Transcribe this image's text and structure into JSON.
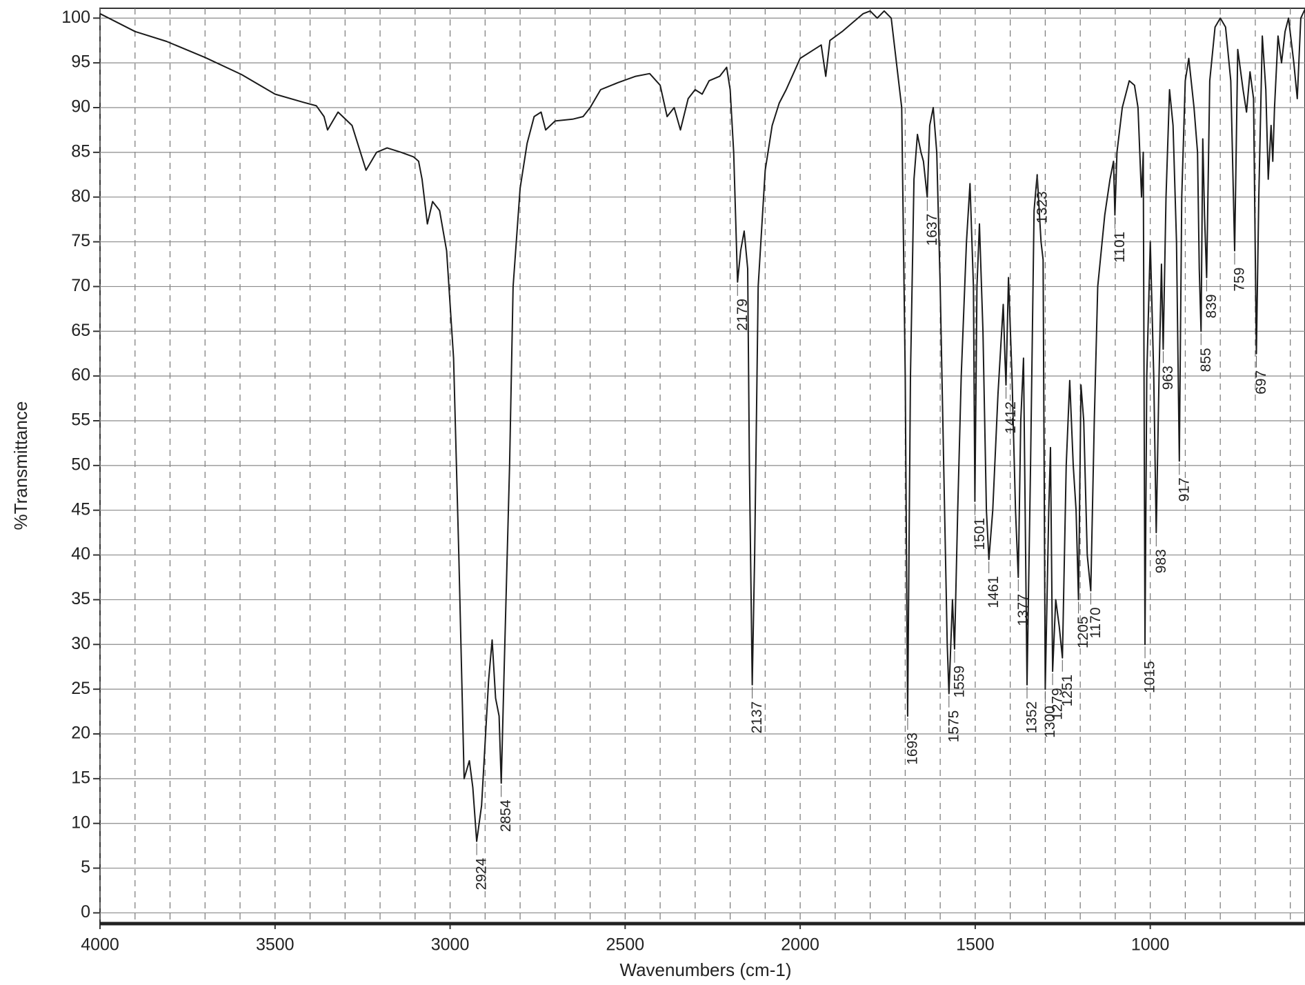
{
  "chart_data": {
    "type": "line",
    "xlabel": "Wavenumbers (cm-1)",
    "ylabel": "%Transmittance",
    "color": "#1a1a1a",
    "x": [
      4000,
      3900,
      3810,
      3700,
      3596,
      3500,
      3420,
      3382,
      3360,
      3350,
      3335,
      3320,
      3280,
      3240,
      3210,
      3180,
      3140,
      3105,
      3090,
      3080,
      3065,
      3050,
      3030,
      3010,
      2990,
      2975,
      2960,
      2945,
      2935,
      2924,
      2910,
      2890,
      2880,
      2870,
      2860,
      2854,
      2845,
      2830,
      2820,
      2800,
      2780,
      2760,
      2740,
      2727,
      2700,
      2650,
      2620,
      2600,
      2570,
      2520,
      2470,
      2430,
      2400,
      2380,
      2360,
      2342,
      2320,
      2300,
      2280,
      2260,
      2230,
      2210,
      2200,
      2190,
      2179,
      2170,
      2160,
      2150,
      2145,
      2137,
      2130,
      2120,
      2100,
      2080,
      2060,
      2040,
      2000,
      1960,
      1940,
      1927,
      1915,
      1880,
      1850,
      1820,
      1800,
      1780,
      1760,
      1740,
      1725,
      1710,
      1700,
      1693,
      1685,
      1675,
      1665,
      1655,
      1648,
      1637,
      1630,
      1620,
      1610,
      1600,
      1590,
      1580,
      1575,
      1565,
      1559,
      1550,
      1540,
      1525,
      1515,
      1505,
      1501,
      1495,
      1488,
      1478,
      1468,
      1461,
      1450,
      1435,
      1420,
      1415,
      1412,
      1405,
      1395,
      1385,
      1377,
      1370,
      1362,
      1352,
      1342,
      1332,
      1323,
      1312,
      1306,
      1300,
      1290,
      1285,
      1279,
      1270,
      1260,
      1251,
      1240,
      1230,
      1220,
      1212,
      1205,
      1198,
      1190,
      1180,
      1170,
      1160,
      1150,
      1130,
      1115,
      1105,
      1101,
      1095,
      1080,
      1060,
      1045,
      1035,
      1025,
      1020,
      1015,
      1010,
      1000,
      990,
      983,
      975,
      968,
      963,
      955,
      945,
      935,
      925,
      917,
      910,
      900,
      890,
      875,
      865,
      860,
      855,
      850,
      845,
      839,
      830,
      815,
      800,
      785,
      770,
      759,
      750,
      735,
      725,
      715,
      705,
      697,
      690,
      680,
      670,
      663,
      655,
      650,
      645,
      635,
      625,
      615,
      605,
      590,
      580,
      570,
      558
    ],
    "values": [
      100.5,
      98.5,
      97.4,
      95.6,
      93.7,
      91.5,
      90.6,
      90.2,
      89,
      87.5,
      88.5,
      89.5,
      88,
      83,
      85,
      85.5,
      85,
      84.5,
      84,
      82,
      77,
      79.5,
      78.5,
      74,
      62,
      40,
      15,
      17,
      14,
      8,
      12,
      26,
      30.5,
      24,
      22,
      14.5,
      28,
      50,
      70,
      81,
      86,
      89,
      89.5,
      87.5,
      88.5,
      88.7,
      89,
      90,
      92,
      92.8,
      93.5,
      93.8,
      92.5,
      89,
      90,
      87.5,
      91,
      92,
      91.5,
      93,
      93.5,
      94.5,
      92,
      85,
      70.5,
      74,
      76.2,
      72,
      50,
      25.5,
      40,
      70,
      83,
      88,
      90.5,
      92,
      95.5,
      96.5,
      97,
      93.5,
      97.5,
      98.5,
      99.5,
      100.5,
      100.8,
      100,
      100.8,
      100,
      95,
      90,
      60,
      22,
      60,
      82,
      87,
      85,
      84,
      80,
      88,
      90,
      85,
      70,
      50,
      30,
      24.5,
      35,
      29.5,
      45,
      60,
      75,
      81.5,
      70,
      46,
      70,
      77,
      65,
      45,
      39.5,
      45,
      58,
      68,
      62,
      59,
      71,
      60,
      45,
      37.5,
      55,
      62,
      25.5,
      50,
      78.5,
      82.5,
      75,
      73,
      25,
      45,
      52,
      27,
      35,
      32,
      28.5,
      50,
      59.5,
      50,
      45,
      35,
      59,
      55,
      40,
      36,
      55,
      70,
      78,
      82,
      84,
      78,
      85,
      90,
      93,
      92.5,
      90,
      80,
      85,
      30,
      60,
      75,
      60,
      42.5,
      60,
      72.5,
      63,
      80,
      92,
      88,
      75,
      50.5,
      80,
      93,
      95.5,
      90,
      85,
      72,
      65,
      86.5,
      78,
      71,
      93,
      99,
      100,
      99,
      93,
      74,
      96.5,
      92,
      89.5,
      94,
      91,
      62.5,
      80,
      98,
      92,
      82,
      88,
      84,
      90,
      98,
      95,
      98.5,
      100,
      95,
      91,
      100,
      101
    ],
    "peaks": [
      2924,
      2854,
      2179,
      2137,
      1693,
      1637,
      1575,
      1559,
      1501,
      1461,
      1412,
      1377,
      1352,
      1323,
      1300,
      1279,
      1251,
      1205,
      1170,
      1101,
      1015,
      983,
      963,
      917,
      855,
      839,
      759,
      697
    ],
    "xlim": [
      4000,
      558
    ],
    "ylim": [
      -1.2,
      101.1
    ],
    "xticks": [
      4000,
      3500,
      3000,
      2500,
      2000,
      1500,
      1000
    ],
    "xminorticks": [
      3900,
      3800,
      3700,
      3600,
      3400,
      3300,
      3200,
      3100,
      2900,
      2800,
      2700,
      2600,
      2400,
      2300,
      2200,
      2100,
      1900,
      1800,
      1700,
      1600,
      1400,
      1300,
      1200,
      1100,
      900,
      800,
      700,
      600
    ],
    "yticks": [
      0,
      5,
      10,
      15,
      20,
      25,
      30,
      35,
      40,
      45,
      50,
      55,
      60,
      65,
      70,
      75,
      80,
      85,
      90,
      95,
      100
    ],
    "grid": true
  }
}
